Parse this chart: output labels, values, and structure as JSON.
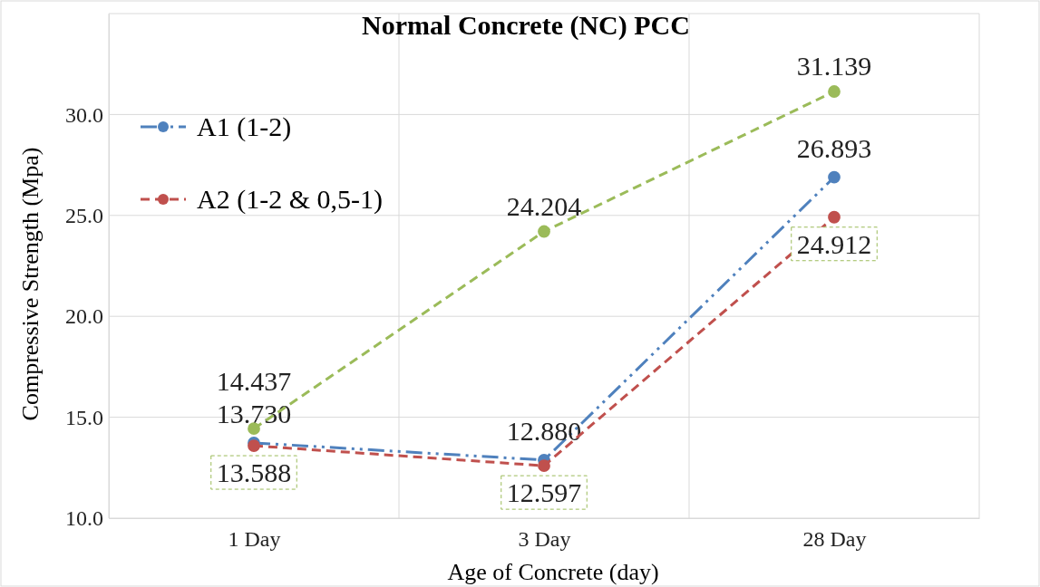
{
  "chart_data": {
    "type": "line",
    "title": "Normal Concrete (NC) PCC",
    "xlabel": "Age of Concrete (day)",
    "ylabel": "Compressive Strength  (Mpa)",
    "categories": [
      "1 Day",
      "3 Day",
      "28 Day"
    ],
    "series": [
      {
        "name": "A1 (1-2)",
        "color": "#4f81bd",
        "values": [
          13.73,
          12.88,
          26.893
        ],
        "value_labels": [
          "13.730",
          "12.880",
          "26.893"
        ],
        "line_style": "dashdot"
      },
      {
        "name": "A2 (1-2 & 0,5-1)",
        "color": "#c0504d",
        "values": [
          13.588,
          12.597,
          24.912
        ],
        "value_labels": [
          "13.588",
          "12.597",
          "24.912"
        ],
        "line_style": "dashed"
      },
      {
        "color": "#9bbb59",
        "values": [
          14.437,
          24.204,
          31.139
        ],
        "value_labels": [
          "14.437",
          "24.204",
          "31.139"
        ],
        "line_style": "dashed"
      }
    ],
    "ylim": [
      10,
      35
    ],
    "yticks": [
      {
        "value": 10,
        "label": "10.0"
      },
      {
        "value": 15,
        "label": "15.0"
      },
      {
        "value": 20,
        "label": "20.0"
      },
      {
        "value": 25,
        "label": "25.0"
      },
      {
        "value": 30,
        "label": "30.0"
      }
    ],
    "grid": true,
    "legend": "top left",
    "marker": "circle"
  }
}
